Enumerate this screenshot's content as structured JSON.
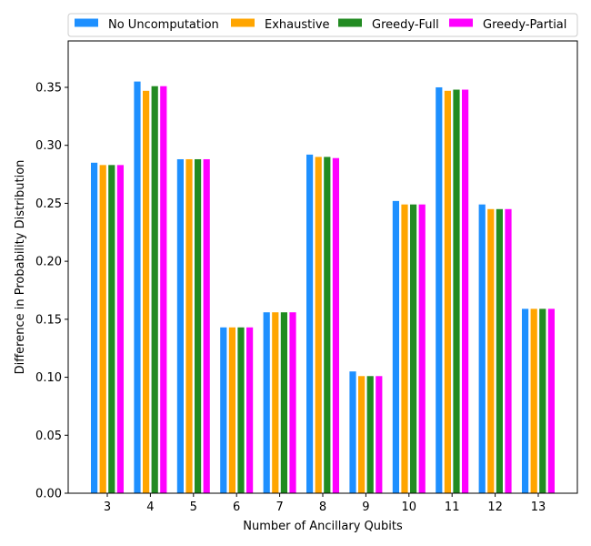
{
  "chart_data": {
    "type": "bar",
    "xlabel": "Number of Ancillary Qubits",
    "ylabel": "Difference in Probability Distribution",
    "categories": [
      "3",
      "4",
      "5",
      "6",
      "7",
      "8",
      "9",
      "10",
      "11",
      "12",
      "13"
    ],
    "ylim": [
      0,
      0.39
    ],
    "yticks": [
      "0.00",
      "0.05",
      "0.10",
      "0.15",
      "0.20",
      "0.25",
      "0.30",
      "0.35"
    ],
    "legend_position": "top",
    "grid": false,
    "series": [
      {
        "name": "No Uncomputation",
        "color": "#1e90ff",
        "values": [
          0.285,
          0.355,
          0.288,
          0.143,
          0.156,
          0.292,
          0.105,
          0.252,
          0.35,
          0.249,
          0.159
        ]
      },
      {
        "name": "Exhaustive",
        "color": "#ffa500",
        "values": [
          0.283,
          0.347,
          0.288,
          0.143,
          0.156,
          0.29,
          0.101,
          0.249,
          0.347,
          0.245,
          0.159
        ]
      },
      {
        "name": "Greedy-Full",
        "color": "#228b22",
        "values": [
          0.283,
          0.351,
          0.288,
          0.143,
          0.156,
          0.29,
          0.101,
          0.249,
          0.348,
          0.245,
          0.159
        ]
      },
      {
        "name": "Greedy-Partial",
        "color": "#ff00ff",
        "values": [
          0.283,
          0.351,
          0.288,
          0.143,
          0.156,
          0.289,
          0.101,
          0.249,
          0.348,
          0.245,
          0.159
        ]
      }
    ]
  }
}
